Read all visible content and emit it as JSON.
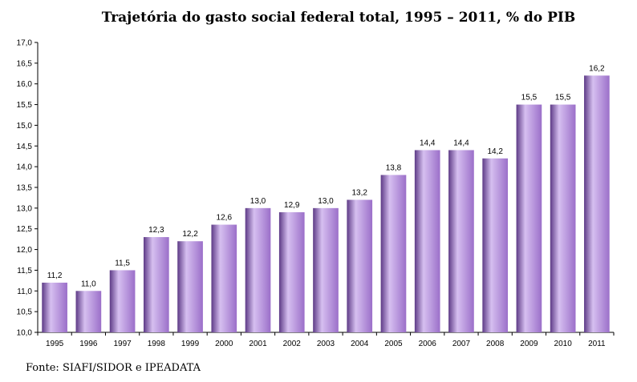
{
  "chart_data": {
    "type": "bar",
    "title": "Trajetória do gasto social federal total, 1995 – 2011, % do PIB",
    "xlabel": "",
    "ylabel": "",
    "categories": [
      "1995",
      "1996",
      "1997",
      "1998",
      "1999",
      "2000",
      "2001",
      "2002",
      "2003",
      "2004",
      "2005",
      "2006",
      "2007",
      "2008",
      "2009",
      "2010",
      "2011"
    ],
    "values": [
      11.2,
      11.0,
      11.5,
      12.3,
      12.2,
      12.6,
      13.0,
      12.9,
      13.0,
      13.2,
      13.8,
      14.4,
      14.4,
      14.2,
      15.5,
      15.5,
      16.2
    ],
    "value_labels": [
      "11,2",
      "11,0",
      "11,5",
      "12,3",
      "12,2",
      "12,6",
      "13,0",
      "12,9",
      "13,0",
      "13,2",
      "13,8",
      "14,4",
      "14,4",
      "14,2",
      "15,5",
      "15,5",
      "16,2"
    ],
    "ylim": [
      10.0,
      17.0
    ],
    "yticks": [
      10.0,
      10.5,
      11.0,
      11.5,
      12.0,
      12.5,
      13.0,
      13.5,
      14.0,
      14.5,
      15.0,
      15.5,
      16.0,
      16.5,
      17.0
    ],
    "ytick_labels": [
      "10,0",
      "10,5",
      "11,0",
      "11,5",
      "12,0",
      "12,5",
      "13,0",
      "13,5",
      "14,0",
      "14,5",
      "15,0",
      "15,5",
      "16,0",
      "16,5",
      "17,0"
    ],
    "grid": false,
    "legend": "none",
    "bar_color": "#9b6fc9",
    "bar_highlight": "#d6bff0",
    "bar_shadow": "#5d3a86"
  },
  "source": "Fonte: SIAFI/SIDOR e IPEADATA"
}
